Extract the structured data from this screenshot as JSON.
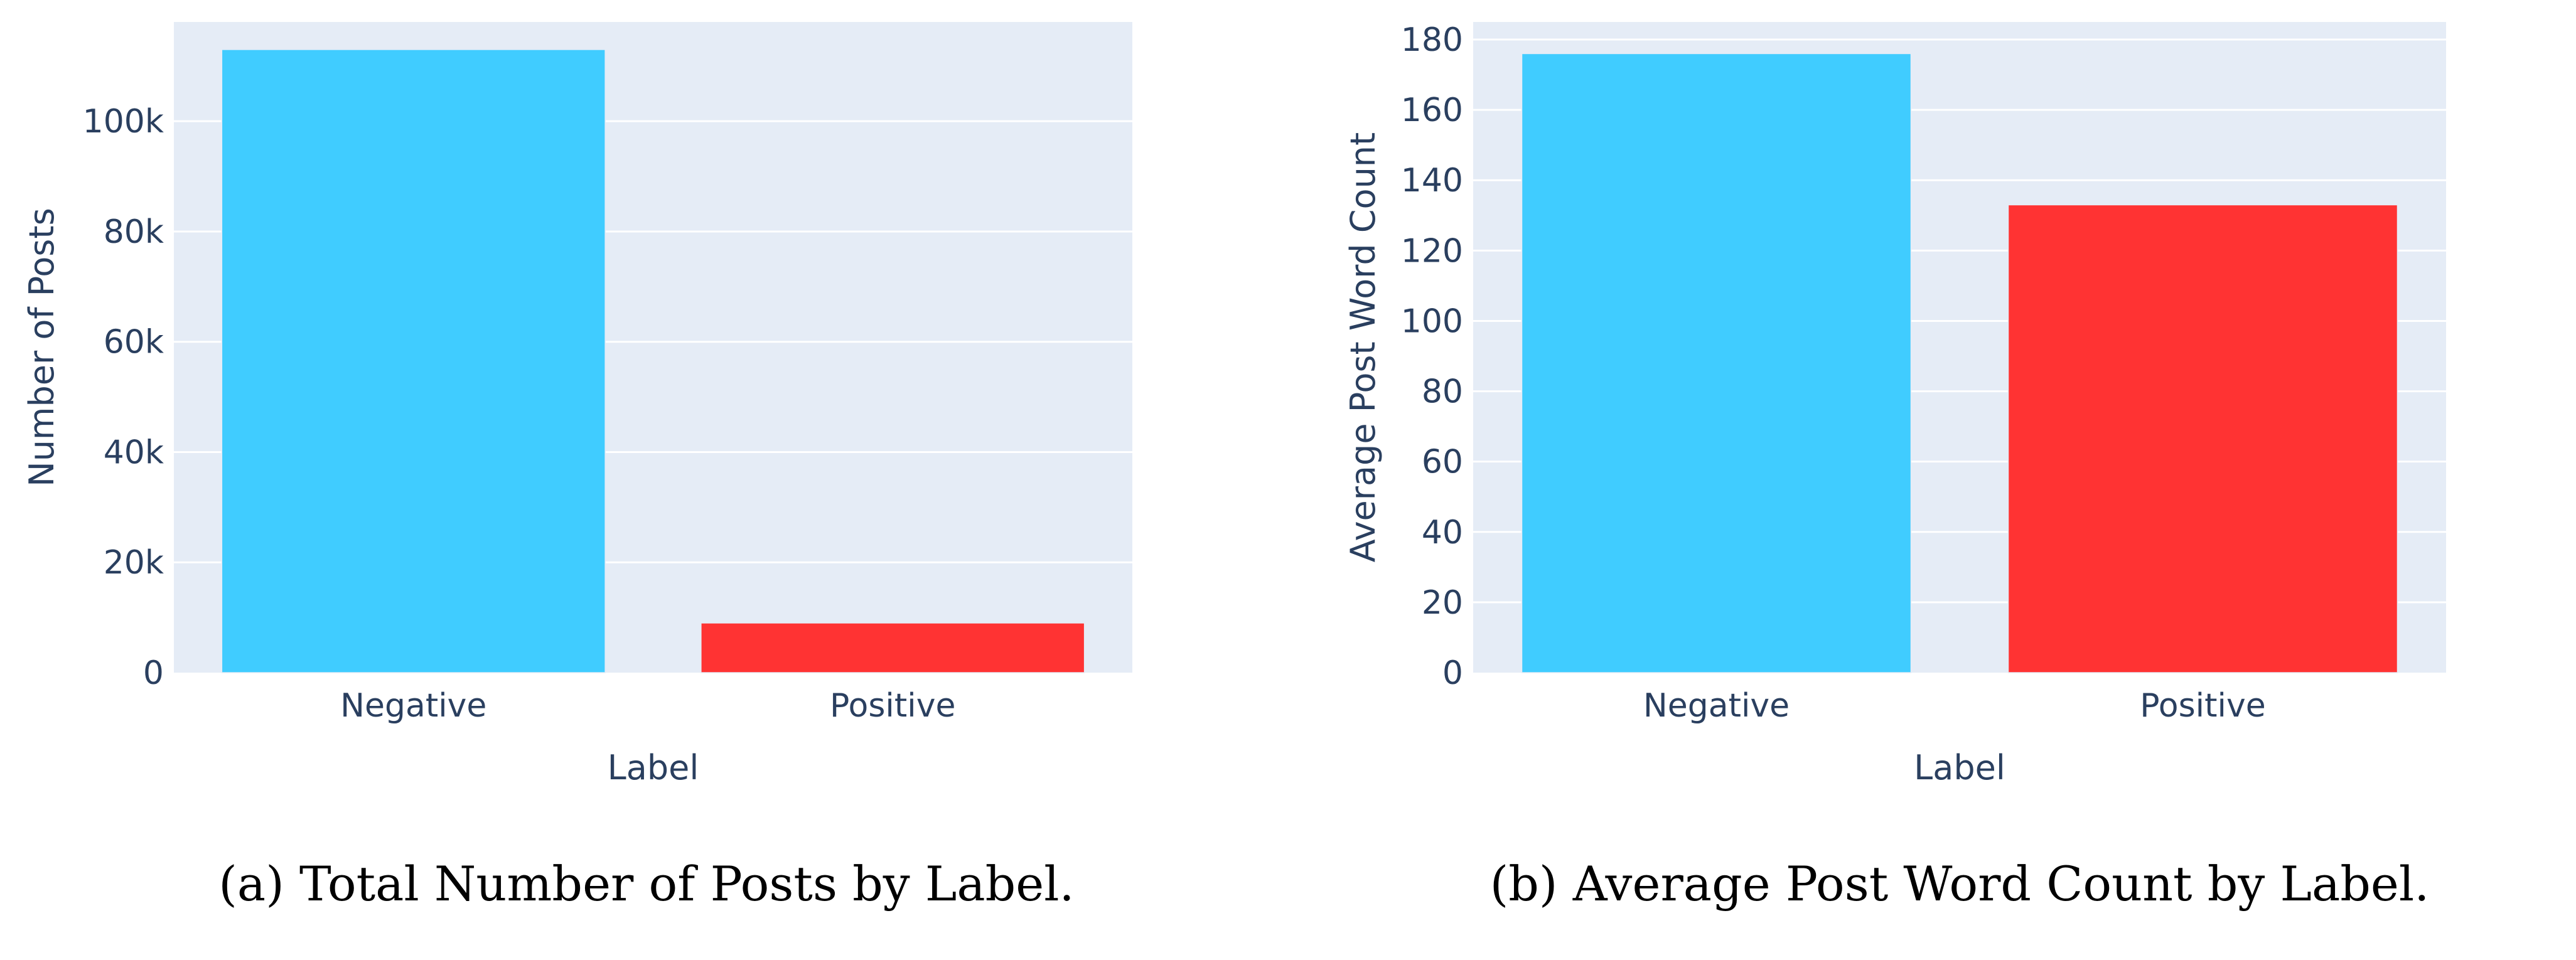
{
  "colors": {
    "plot_bg": "#e5ecf6",
    "grid": "#ffffff",
    "axis_text": "#2a3f5f",
    "negative": "#40ccff",
    "positive": "#ff3333",
    "caption": "#000000"
  },
  "chart_data": [
    {
      "type": "bar",
      "categories": [
        "Negative",
        "Positive"
      ],
      "values": [
        113000,
        9000
      ],
      "xlabel": "Label",
      "ylabel": "Number of Posts",
      "ylim": [
        0,
        118000
      ],
      "yticks": [
        0,
        20000,
        40000,
        60000,
        80000,
        100000
      ],
      "ytick_labels": [
        "0",
        "20k",
        "40k",
        "60k",
        "80k",
        "100k"
      ],
      "grid": true,
      "legend": "none",
      "caption": "(a) Total Number of Posts by Label."
    },
    {
      "type": "bar",
      "categories": [
        "Negative",
        "Positive"
      ],
      "values": [
        176,
        133
      ],
      "xlabel": "Label",
      "ylabel": "Average Post Word Count",
      "ylim": [
        0,
        185
      ],
      "yticks": [
        0,
        20,
        40,
        60,
        80,
        100,
        120,
        140,
        160,
        180
      ],
      "ytick_labels": [
        "0",
        "20",
        "40",
        "60",
        "80",
        "100",
        "120",
        "140",
        "160",
        "180"
      ],
      "grid": true,
      "legend": "none",
      "caption": "(b) Average Post Word Count by Label."
    }
  ]
}
